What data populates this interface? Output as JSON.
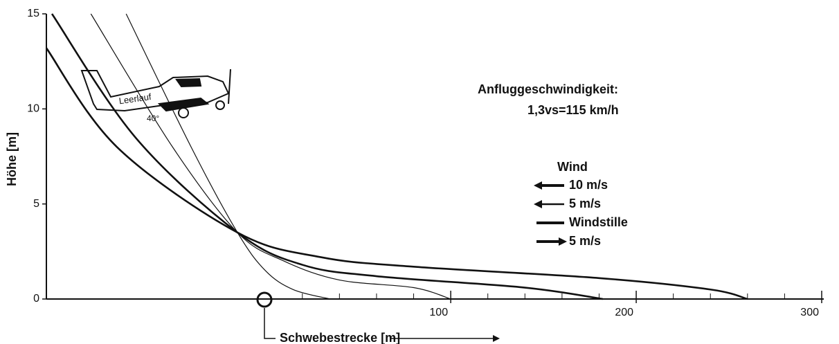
{
  "chart_data": {
    "type": "line",
    "ylabel": "Höhe [m]",
    "xlabel": "Schwebestrecke [m]",
    "xlim": [
      -118,
      300
    ],
    "ylim": [
      0,
      15
    ],
    "xticks": [
      100,
      200,
      300
    ],
    "xminorticks": [
      20,
      40,
      60,
      80,
      120,
      140,
      160,
      180,
      220,
      240,
      260,
      280
    ],
    "yticks": [
      0,
      5,
      10,
      15
    ],
    "annotations": [
      "Anfluggeschwindigkeit:",
      "1,3vs=115 km/h",
      "Leerlauf",
      "40°"
    ],
    "legend_title": "Wind",
    "series": [
      {
        "name": "10 m/s",
        "color": "#111111",
        "style": "thin",
        "marker": "arrow-left-thick",
        "x": [
          -75,
          -40,
          -15,
          0,
          15,
          35
        ],
        "values": [
          15,
          8,
          3.5,
          1.5,
          0.5,
          0
        ]
      },
      {
        "name": "5 m/s",
        "color": "#111111",
        "style": "thin",
        "marker": "arrow-left",
        "x": [
          -94,
          -50,
          -15,
          10,
          40,
          80,
          100
        ],
        "values": [
          15,
          8,
          3.5,
          2,
          1,
          0.6,
          0
        ]
      },
      {
        "name": "Windstille",
        "color": "#111111",
        "style": "thick",
        "marker": "line",
        "x": [
          -115,
          -70,
          -15,
          20,
          60,
          140,
          182
        ],
        "values": [
          15,
          8.5,
          3.5,
          1.8,
          1.2,
          0.6,
          0
        ]
      },
      {
        "name": "5 m/s",
        "color": "#111111",
        "style": "thick",
        "marker": "arrow-right",
        "x": [
          -118,
          -80,
          -15,
          30,
          80,
          180,
          240,
          260
        ],
        "values": [
          13.2,
          8,
          3.5,
          2.2,
          1.7,
          1.1,
          0.5,
          0
        ]
      }
    ]
  }
}
